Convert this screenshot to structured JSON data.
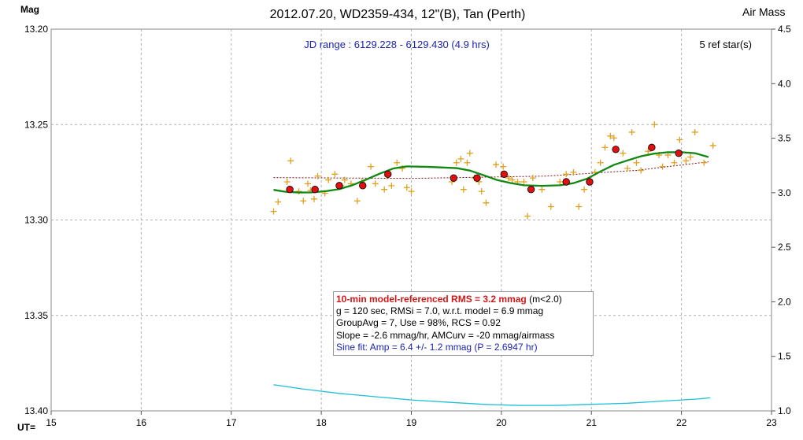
{
  "chart_data": {
    "type": "scatter",
    "title": "2012.07.20, WD2359-434, 12\"(B), Tan (Perth)",
    "ylabel_left": "Mag",
    "ylabel_right": "Air Mass",
    "xlabel": "UT=",
    "jd_range": "JD range : 6129.228 - 6129.430 (4.9 hrs)",
    "ref_stars": "5 ref star(s)",
    "xlim": [
      15,
      23
    ],
    "ylim_left": [
      13.2,
      13.4
    ],
    "ylim_right": [
      1.0,
      4.5
    ],
    "x_ticks": [
      "15",
      "16",
      "17",
      "18",
      "19",
      "20",
      "21",
      "22",
      "23"
    ],
    "y_ticks_left": [
      "13.20",
      "13.25",
      "13.30",
      "13.35",
      "13.40"
    ],
    "y_ticks_right": [
      "4.5",
      "4.0",
      "3.5",
      "3.0",
      "2.5",
      "2.0",
      "1.5",
      "1.0"
    ],
    "grid": true,
    "info_lines": [
      {
        "text": "10-min model-referenced RMS = 3.2 mmag",
        "suffix": " (m<2.0)"
      },
      {
        "text": "g = 120 sec, RMSi = 7.0, w.r.t. model = 6.9 mmag"
      },
      {
        "text": "GroupAvg = 7, Use = 98%, RCS = 0.92"
      },
      {
        "text": "Slope = -2.6  mmag/hr,  AMCurv  = -20  mmag/airmass"
      },
      {
        "text": "Sine fit: Amp = 6.4 +/- 1.2 mmag (P = 2.6947  hr)"
      }
    ],
    "colors": {
      "points": "#e0a020",
      "averages": "#e01010",
      "model": "#118811",
      "trend": "#7a1010",
      "airmass": "#20c0d8",
      "jd_text": "#1a23b0",
      "rms_text": "#d01818"
    },
    "series": [
      {
        "name": "individual",
        "points": [
          [
            17.47,
            13.2955
          ],
          [
            17.52,
            13.2905
          ],
          [
            17.62,
            13.28
          ],
          [
            17.66,
            13.269
          ],
          [
            17.75,
            13.285
          ],
          [
            17.8,
            13.29
          ],
          [
            17.85,
            13.281
          ],
          [
            17.88,
            13.2845
          ],
          [
            17.92,
            13.289
          ],
          [
            17.96,
            13.277
          ],
          [
            18.04,
            13.286
          ],
          [
            18.08,
            13.279
          ],
          [
            18.15,
            13.276
          ],
          [
            18.22,
            13.282
          ],
          [
            18.26,
            13.279
          ],
          [
            18.33,
            13.281
          ],
          [
            18.4,
            13.29
          ],
          [
            18.45,
            13.28
          ],
          [
            18.55,
            13.272
          ],
          [
            18.6,
            13.281
          ],
          [
            18.7,
            13.284
          ],
          [
            18.73,
            13.277
          ],
          [
            18.78,
            13.282
          ],
          [
            18.84,
            13.27
          ],
          [
            18.9,
            13.273
          ],
          [
            18.95,
            13.283
          ],
          [
            19.0,
            13.285
          ],
          [
            19.45,
            13.28
          ],
          [
            19.5,
            13.27
          ],
          [
            19.55,
            13.268
          ],
          [
            19.58,
            13.284
          ],
          [
            19.62,
            13.27
          ],
          [
            19.65,
            13.265
          ],
          [
            19.7,
            13.278
          ],
          [
            19.75,
            13.28
          ],
          [
            19.78,
            13.285
          ],
          [
            19.83,
            13.291
          ],
          [
            19.94,
            13.271
          ],
          [
            20.02,
            13.272
          ],
          [
            20.08,
            13.278
          ],
          [
            20.12,
            13.279
          ],
          [
            20.18,
            13.28
          ],
          [
            20.25,
            13.28
          ],
          [
            20.29,
            13.298
          ],
          [
            20.35,
            13.278
          ],
          [
            20.45,
            13.284
          ],
          [
            20.55,
            13.293
          ],
          [
            20.65,
            13.28
          ],
          [
            20.72,
            13.276
          ],
          [
            20.8,
            13.275
          ],
          [
            20.86,
            13.293
          ],
          [
            20.92,
            13.284
          ],
          [
            20.98,
            13.28
          ],
          [
            21.04,
            13.275
          ],
          [
            21.1,
            13.27
          ],
          [
            21.15,
            13.262
          ],
          [
            21.21,
            13.256
          ],
          [
            21.25,
            13.257
          ],
          [
            21.35,
            13.265
          ],
          [
            21.4,
            13.273
          ],
          [
            21.45,
            13.254
          ],
          [
            21.5,
            13.27
          ],
          [
            21.55,
            13.274
          ],
          [
            21.63,
            13.264
          ],
          [
            21.7,
            13.25
          ],
          [
            21.75,
            13.266
          ],
          [
            21.79,
            13.272
          ],
          [
            21.85,
            13.266
          ],
          [
            21.92,
            13.27
          ],
          [
            21.98,
            13.258
          ],
          [
            22.05,
            13.269
          ],
          [
            22.1,
            13.267
          ],
          [
            22.15,
            13.254
          ],
          [
            22.25,
            13.27
          ],
          [
            22.35,
            13.261
          ]
        ]
      },
      {
        "name": "averages",
        "points": [
          [
            17.65,
            13.284
          ],
          [
            17.93,
            13.284
          ],
          [
            18.2,
            13.282
          ],
          [
            18.46,
            13.282
          ],
          [
            18.74,
            13.276
          ],
          [
            19.47,
            13.278
          ],
          [
            19.73,
            13.278
          ],
          [
            20.03,
            13.276
          ],
          [
            20.33,
            13.284
          ],
          [
            20.72,
            13.28
          ],
          [
            20.98,
            13.28
          ],
          [
            21.27,
            13.263
          ],
          [
            21.67,
            13.262
          ],
          [
            21.97,
            13.265
          ]
        ]
      },
      {
        "name": "model",
        "points": [
          [
            17.47,
            13.2842
          ],
          [
            17.6,
            13.2852
          ],
          [
            17.75,
            13.2856
          ],
          [
            17.9,
            13.2855
          ],
          [
            18.05,
            13.2849
          ],
          [
            18.2,
            13.2838
          ],
          [
            18.35,
            13.2817
          ],
          [
            18.5,
            13.2788
          ],
          [
            18.65,
            13.2757
          ],
          [
            18.8,
            13.273
          ],
          [
            18.95,
            13.2719
          ],
          [
            19.2,
            13.2722
          ],
          [
            19.5,
            13.2728
          ],
          [
            19.65,
            13.2741
          ],
          [
            19.8,
            13.2765
          ],
          [
            19.95,
            13.279
          ],
          [
            20.1,
            13.2806
          ],
          [
            20.25,
            13.2818
          ],
          [
            20.45,
            13.2821
          ],
          [
            20.65,
            13.2818
          ],
          [
            20.8,
            13.2807
          ],
          [
            20.95,
            13.2784
          ],
          [
            21.1,
            13.2746
          ],
          [
            21.25,
            13.2711
          ],
          [
            21.4,
            13.2688
          ],
          [
            21.55,
            13.2666
          ],
          [
            21.7,
            13.2652
          ],
          [
            21.85,
            13.2645
          ],
          [
            22.0,
            13.2645
          ],
          [
            22.15,
            13.265
          ],
          [
            22.3,
            13.267
          ]
        ]
      },
      {
        "name": "trend",
        "points": [
          [
            17.47,
            13.2778
          ],
          [
            19.0,
            13.2782
          ],
          [
            20.5,
            13.277
          ],
          [
            21.5,
            13.274
          ],
          [
            22.3,
            13.2695
          ]
        ]
      },
      {
        "name": "airmass",
        "points": [
          [
            17.47,
            1.24
          ],
          [
            17.8,
            1.2
          ],
          [
            18.2,
            1.16
          ],
          [
            18.6,
            1.13
          ],
          [
            19.0,
            1.1
          ],
          [
            19.4,
            1.08
          ],
          [
            19.8,
            1.06
          ],
          [
            20.2,
            1.05
          ],
          [
            20.6,
            1.05
          ],
          [
            21.0,
            1.06
          ],
          [
            21.4,
            1.07
          ],
          [
            21.8,
            1.09
          ],
          [
            22.2,
            1.11
          ],
          [
            22.32,
            1.12
          ]
        ]
      }
    ]
  }
}
